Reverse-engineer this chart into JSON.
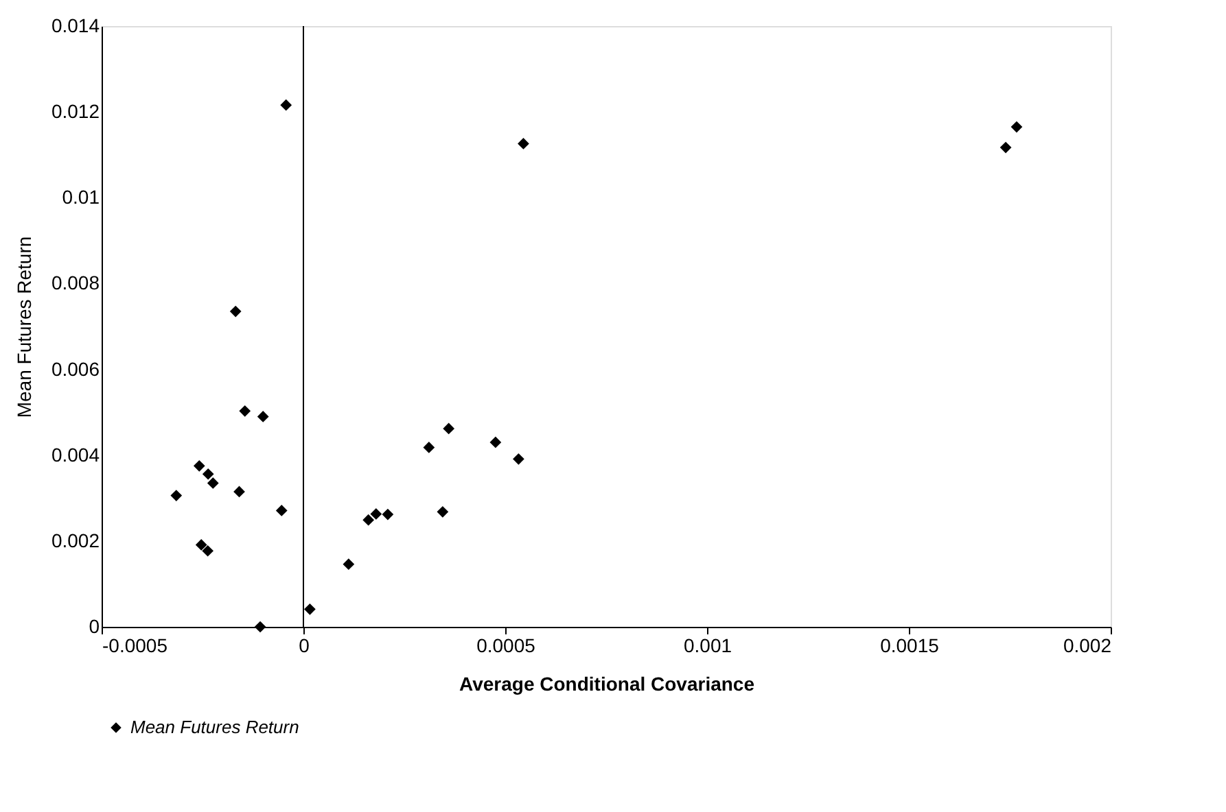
{
  "chart_data": {
    "type": "scatter",
    "xlabel": "Average Conditional Covariance",
    "ylabel": "Mean Futures Return",
    "x": [
      -0.000315,
      -0.000258,
      -0.000236,
      -0.000224,
      -0.000253,
      -0.000237,
      -0.000168,
      -0.000145,
      -0.0001,
      -0.000159,
      -5.4e-05,
      -0.000107,
      -4.3e-05,
      1.6e-05,
      0.000112,
      0.000161,
      0.00018,
      0.000209,
      0.000311,
      0.00036,
      0.000345,
      0.000476,
      0.000533,
      0.000545,
      0.00174,
      0.001767
    ],
    "series": [
      {
        "name": "Mean Futures Return",
        "color": "#000000",
        "values": [
          0.00306,
          0.00375,
          0.00356,
          0.00335,
          0.00191,
          0.00177,
          0.00735,
          0.00503,
          0.0049,
          0.00315,
          0.00271,
          0,
          0.01216,
          0.00041,
          0.00146,
          0.00249,
          0.00263,
          0.00262,
          0.00418,
          0.00462,
          0.00268,
          0.0043,
          0.00391,
          0.01126,
          0.01117,
          0.01165
        ]
      }
    ],
    "xlim": [
      -0.0005,
      0.002
    ],
    "xticks": [
      -0.0005,
      0,
      0.0005,
      0.001,
      0.0015,
      0.002
    ],
    "ylim": [
      0,
      0.014
    ],
    "yticks": [
      0,
      0.002,
      0.004,
      0.006,
      0.008,
      0.01,
      0.012,
      0.014
    ],
    "ref_lines": [
      {
        "axis": "x",
        "value": 0,
        "color": "#000000"
      }
    ],
    "marker": "diamond",
    "grid": false,
    "legend": "bottom"
  }
}
